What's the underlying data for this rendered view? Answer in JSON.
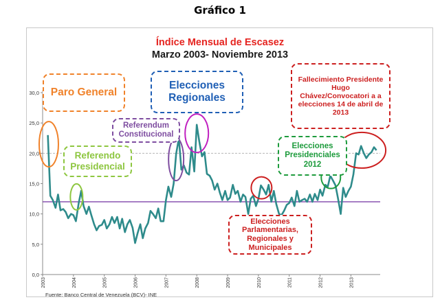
{
  "header": {
    "title": "Gráfico 1"
  },
  "source": "Fuente: Banco Central de Venezuela (BCV)- INE",
  "annotations": {
    "paro_general": "Paro General",
    "referendo_presidencial": "Referendo Presidencial",
    "referendum_constitucional": "Referendum Constitucional",
    "elecciones_regionales": "Elecciones Regionales",
    "elecciones_parlamentarias": "Elecciones Parlamentarias, Regionales y Municipales",
    "elecciones_presidenciales": "Elecciones Presidenciales 2012",
    "fallecimiento": "Fallecimiento Presidente Hugo Chávez/Convocatori a a elecciones 14 de abril de 2013"
  },
  "colors": {
    "series": "#2e8b8b",
    "threshold": "#7030a0",
    "title_red": "#e52420",
    "orange": "#f0822a",
    "green": "#8dc63f",
    "purple": "#7e4da0",
    "magenta": "#c020c0",
    "blue": "#1f5fb5",
    "red": "#cc1f1f",
    "dark_green": "#1d9b3c"
  },
  "chart_data": {
    "type": "line",
    "title": "Índice Mensual de Escasez",
    "subtitle": "Marzo 2003- Noviembre 2013",
    "xlabel": "",
    "ylabel": "",
    "ylim": [
      0,
      30
    ],
    "yticks": [
      "0,0",
      "5,0",
      "10,0",
      "15,0",
      "20,0",
      "25,0",
      "30,0"
    ],
    "xticks": [
      "2003",
      "2004",
      "2005",
      "2006",
      "2007",
      "2008",
      "2009",
      "2010",
      "2011",
      "2012",
      "2013"
    ],
    "reference_lines": [
      12.0,
      20.0
    ],
    "series": [
      {
        "x": [
          2003.17,
          2003.25,
          2003.33,
          2003.42,
          2003.5,
          2003.58,
          2003.67,
          2003.75,
          2003.83,
          2003.92,
          2004.0,
          2004.08,
          2004.17,
          2004.25,
          2004.33,
          2004.42,
          2004.5,
          2004.58,
          2004.67,
          2004.75,
          2004.83,
          2004.92,
          2005.0,
          2005.08,
          2005.17,
          2005.25,
          2005.33,
          2005.42,
          2005.5,
          2005.58,
          2005.67,
          2005.75,
          2005.83,
          2005.92,
          2006.0,
          2006.08,
          2006.17,
          2006.25,
          2006.33,
          2006.42,
          2006.5,
          2006.58,
          2006.67,
          2006.75,
          2006.83,
          2006.92,
          2007.0,
          2007.08,
          2007.17,
          2007.25,
          2007.33,
          2007.42,
          2007.5,
          2007.58,
          2007.67,
          2007.75,
          2007.83,
          2007.92,
          2008.0,
          2008.08,
          2008.17,
          2008.25,
          2008.33,
          2008.42,
          2008.5,
          2008.58,
          2008.67,
          2008.75,
          2008.83,
          2008.92,
          2009.0,
          2009.08,
          2009.17,
          2009.25,
          2009.33,
          2009.42,
          2009.5,
          2009.58,
          2009.67,
          2009.75,
          2009.83,
          2009.92,
          2010.0,
          2010.08,
          2010.17,
          2010.25,
          2010.33,
          2010.42,
          2010.5,
          2010.58,
          2010.67,
          2010.75,
          2010.83,
          2010.92,
          2011.0,
          2011.08,
          2011.17,
          2011.25,
          2011.33,
          2011.42,
          2011.5,
          2011.58,
          2011.67,
          2011.75,
          2011.83,
          2011.92,
          2012.0,
          2012.08,
          2012.17,
          2012.25,
          2012.33,
          2012.42,
          2012.5,
          2012.58,
          2012.67,
          2012.75,
          2012.83,
          2012.92,
          2013.0,
          2013.08,
          2013.17,
          2013.25,
          2013.33,
          2013.42,
          2013.5,
          2013.58,
          2013.67,
          2013.75,
          2013.83
        ],
        "values": [
          23.0,
          13.0,
          12.3,
          11.0,
          13.2,
          10.6,
          10.8,
          10.3,
          9.3,
          10.0,
          9.8,
          8.8,
          11.8,
          13.8,
          11.3,
          10.0,
          11.2,
          9.8,
          8.3,
          7.3,
          8.0,
          8.2,
          9.0,
          7.6,
          8.3,
          9.5,
          8.5,
          9.5,
          7.6,
          9.2,
          7.0,
          8.3,
          9.0,
          7.7,
          5.2,
          6.8,
          8.3,
          6.0,
          7.6,
          8.5,
          10.5,
          10.0,
          9.3,
          10.9,
          8.8,
          8.8,
          12.3,
          14.5,
          12.8,
          15.0,
          19.9,
          22.5,
          17.3,
          18.0,
          16.8,
          16.5,
          21.0,
          17.0,
          24.7,
          22.0,
          19.5,
          20.2,
          16.6,
          16.3,
          15.5,
          14.0,
          15.0,
          13.5,
          12.3,
          13.8,
          12.3,
          12.7,
          14.8,
          13.3,
          13.8,
          12.0,
          13.2,
          12.8,
          10.0,
          12.5,
          13.0,
          11.3,
          12.5,
          14.7,
          14.0,
          13.2,
          14.8,
          12.0,
          13.8,
          11.6,
          10.0,
          9.8,
          10.5,
          11.5,
          11.8,
          12.7,
          11.3,
          13.8,
          12.0,
          12.3,
          12.5,
          12.0,
          13.2,
          12.0,
          13.3,
          12.3,
          14.0,
          13.0,
          14.8,
          14.5,
          16.3,
          15.5,
          14.7,
          12.6,
          10.0,
          14.3,
          12.8,
          13.8,
          14.5,
          16.5,
          20.0,
          19.8,
          21.2,
          20.0,
          19.2,
          19.8,
          20.2,
          21.0,
          20.5
        ]
      }
    ]
  }
}
